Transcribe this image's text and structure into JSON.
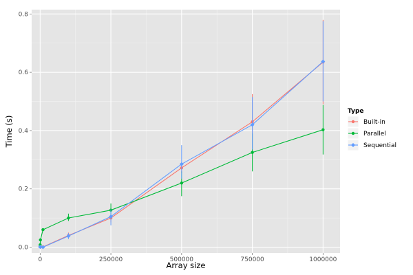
{
  "chart_data": {
    "type": "line",
    "xlabel": "Array size",
    "ylabel": "Time (s)",
    "xlim": [
      -30000,
      1060000
    ],
    "ylim": [
      -0.02,
      0.815
    ],
    "x_ticks": [
      0,
      250000,
      500000,
      750000,
      1000000
    ],
    "x_tick_labels": [
      "0",
      "250000",
      "500000",
      "750000",
      "1000000"
    ],
    "y_ticks": [
      0.0,
      0.2,
      0.4,
      0.6,
      0.8
    ],
    "y_tick_labels": [
      "0.0",
      "0.2",
      "0.4",
      "0.6",
      "0.8"
    ],
    "grid": true,
    "legend": {
      "title": "Type",
      "position": "right"
    },
    "series": [
      {
        "name": "Built-in",
        "color": "#F8766D",
        "marker": "circle",
        "x": [
          0,
          1000,
          10000,
          100000,
          250000,
          500000,
          750000,
          1000000
        ],
        "y": [
          0.002,
          0.001,
          0.001,
          0.04,
          0.1,
          0.272,
          0.43,
          0.635
        ],
        "ymin": [
          0.0,
          0.0,
          0.0,
          0.03,
          0.085,
          0.255,
          0.335,
          0.49
        ],
        "ymax": [
          0.004,
          0.003,
          0.003,
          0.05,
          0.115,
          0.29,
          0.525,
          0.78
        ]
      },
      {
        "name": "Parallel",
        "color": "#00BA38",
        "marker": "circle",
        "x": [
          0,
          1000,
          10000,
          100000,
          250000,
          500000,
          750000,
          1000000
        ],
        "y": [
          0.008,
          0.025,
          0.06,
          0.1,
          0.127,
          0.22,
          0.325,
          0.403
        ],
        "ymin": [
          0.0,
          0.02,
          0.055,
          0.09,
          0.105,
          0.175,
          0.26,
          0.318
        ],
        "ymax": [
          0.016,
          0.03,
          0.065,
          0.115,
          0.15,
          0.26,
          0.39,
          0.488
        ]
      },
      {
        "name": "Sequential",
        "color": "#619CFF",
        "marker": "diamond",
        "x": [
          0,
          1000,
          10000,
          100000,
          250000,
          500000,
          750000,
          1000000
        ],
        "y": [
          0.001,
          0.001,
          0.0,
          0.038,
          0.105,
          0.285,
          0.42,
          0.637
        ],
        "ymin": [
          0.0,
          0.0,
          0.0,
          0.028,
          0.075,
          0.235,
          0.335,
          0.5
        ],
        "ymax": [
          0.003,
          0.003,
          0.002,
          0.048,
          0.13,
          0.35,
          0.515,
          0.775
        ]
      }
    ]
  }
}
